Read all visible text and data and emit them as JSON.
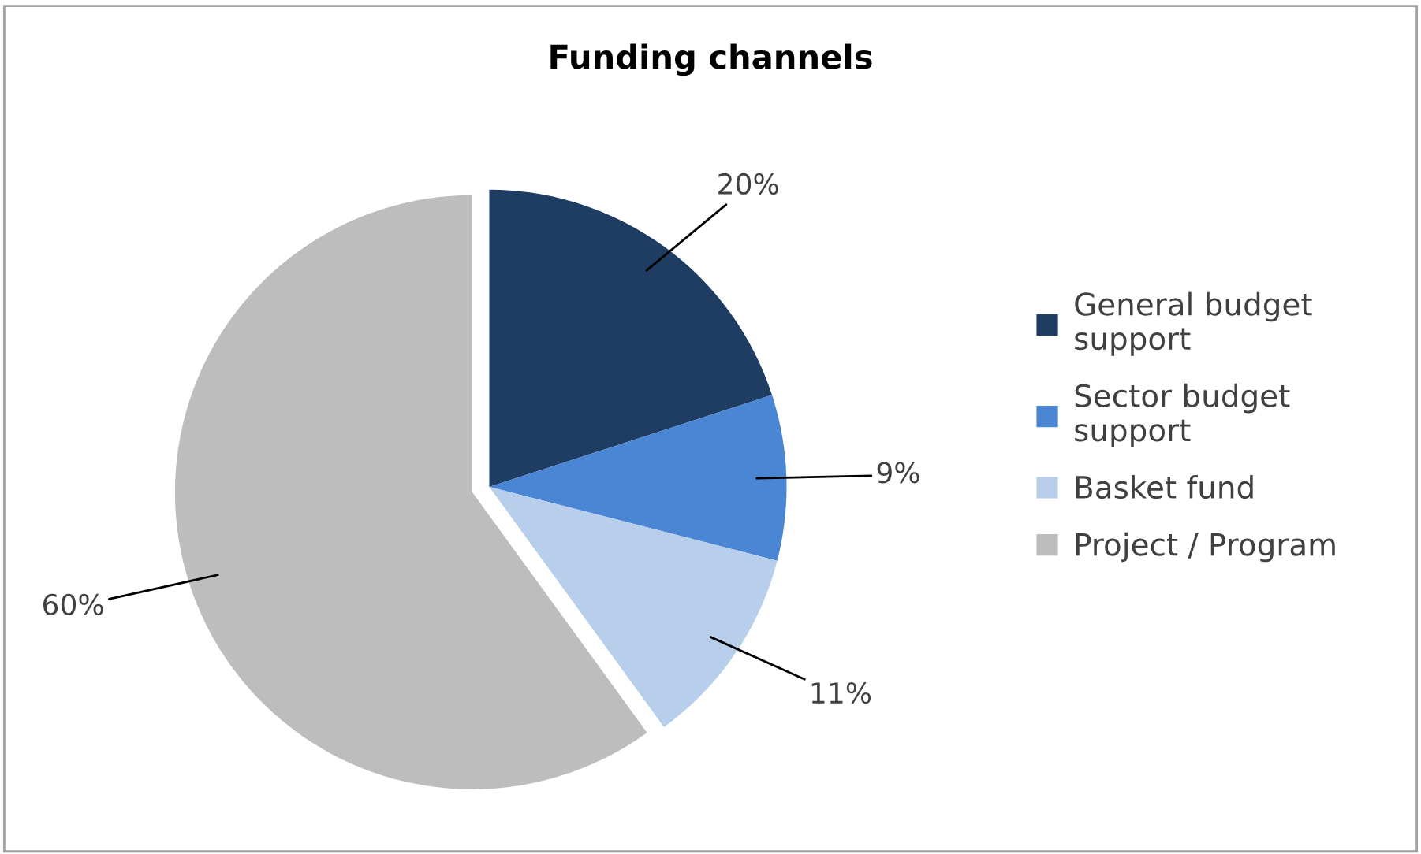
{
  "chart_data": {
    "type": "pie",
    "title": "Funding channels",
    "categories": [
      "General budget support",
      "Sector budget support",
      "Basket fund",
      "Project / Program"
    ],
    "values": [
      20,
      9,
      11,
      60
    ],
    "colors": [
      "#1f3d63",
      "#4a86d4",
      "#b8cfec",
      "#bdbdbd"
    ],
    "value_labels": [
      "20%",
      "9%",
      "11%",
      "60%"
    ],
    "legend": "right"
  }
}
